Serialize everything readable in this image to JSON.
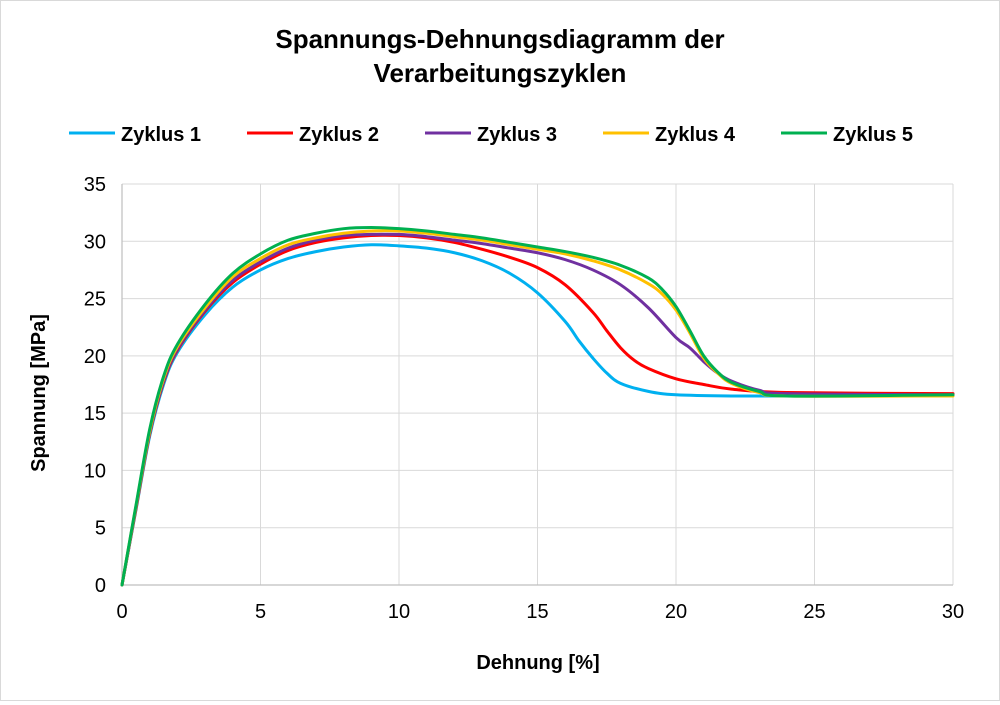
{
  "chart_data": {
    "type": "line",
    "title": "Spannungs-Dehnungsdiagramm der Verarbeitungszyklen",
    "title_lines": [
      "Spannungs-Dehnungsdiagramm der",
      "Verarbeitungszyklen"
    ],
    "xlabel": "Dehnung [%]",
    "ylabel": "Spannung [MPa]",
    "xlim": [
      0,
      30
    ],
    "ylim": [
      0,
      35
    ],
    "xticks": [
      0,
      5,
      10,
      15,
      20,
      25,
      30
    ],
    "yticks": [
      0,
      5,
      10,
      15,
      20,
      25,
      30,
      35
    ],
    "grid": true,
    "legend_position": "top",
    "series": [
      {
        "name": "Zyklus 1",
        "color": "#00b0f0",
        "points": [
          [
            0,
            0
          ],
          [
            0.5,
            6.5
          ],
          [
            1,
            13
          ],
          [
            1.5,
            17.5
          ],
          [
            2,
            20.3
          ],
          [
            3,
            23.6
          ],
          [
            4,
            26
          ],
          [
            5,
            27.5
          ],
          [
            6,
            28.5
          ],
          [
            7,
            29.1
          ],
          [
            8,
            29.5
          ],
          [
            9,
            29.7
          ],
          [
            10,
            29.6
          ],
          [
            11,
            29.4
          ],
          [
            12,
            29
          ],
          [
            13,
            28.3
          ],
          [
            14,
            27.2
          ],
          [
            15,
            25.5
          ],
          [
            16,
            23
          ],
          [
            16.5,
            21.3
          ],
          [
            17,
            19.8
          ],
          [
            17.5,
            18.5
          ],
          [
            18,
            17.6
          ],
          [
            19,
            16.9
          ],
          [
            20,
            16.6
          ],
          [
            22,
            16.5
          ],
          [
            25,
            16.5
          ],
          [
            30,
            16.6
          ]
        ]
      },
      {
        "name": "Zyklus 2",
        "color": "#ff0000",
        "points": [
          [
            0,
            0
          ],
          [
            0.5,
            6.6
          ],
          [
            1,
            13.2
          ],
          [
            1.5,
            17.7
          ],
          [
            2,
            20.5
          ],
          [
            3,
            23.9
          ],
          [
            4,
            26.4
          ],
          [
            5,
            28
          ],
          [
            6,
            29.2
          ],
          [
            7,
            29.9
          ],
          [
            8,
            30.3
          ],
          [
            9,
            30.5
          ],
          [
            10,
            30.5
          ],
          [
            11,
            30.3
          ],
          [
            12,
            29.9
          ],
          [
            13,
            29.3
          ],
          [
            14,
            28.6
          ],
          [
            15,
            27.7
          ],
          [
            16,
            26.2
          ],
          [
            17,
            23.8
          ],
          [
            17.5,
            22.2
          ],
          [
            18,
            20.7
          ],
          [
            18.5,
            19.6
          ],
          [
            19,
            18.9
          ],
          [
            20,
            18
          ],
          [
            21,
            17.5
          ],
          [
            22,
            17.1
          ],
          [
            24,
            16.8
          ],
          [
            30,
            16.7
          ]
        ]
      },
      {
        "name": "Zyklus 3",
        "color": "#7030a0",
        "points": [
          [
            0,
            0
          ],
          [
            0.5,
            6.7
          ],
          [
            1,
            13.3
          ],
          [
            1.5,
            17.8
          ],
          [
            2,
            20.6
          ],
          [
            3,
            24
          ],
          [
            4,
            26.6
          ],
          [
            5,
            28.2
          ],
          [
            6,
            29.4
          ],
          [
            7,
            30.1
          ],
          [
            8,
            30.5
          ],
          [
            9,
            30.6
          ],
          [
            10,
            30.6
          ],
          [
            11,
            30.4
          ],
          [
            12,
            30.1
          ],
          [
            13,
            29.8
          ],
          [
            14,
            29.4
          ],
          [
            15,
            29
          ],
          [
            16,
            28.4
          ],
          [
            17,
            27.5
          ],
          [
            18,
            26.2
          ],
          [
            19,
            24.2
          ],
          [
            20,
            21.6
          ],
          [
            20.5,
            20.7
          ],
          [
            21,
            19.5
          ],
          [
            21.5,
            18.5
          ],
          [
            22,
            17.8
          ],
          [
            23,
            17
          ],
          [
            24,
            16.7
          ],
          [
            30,
            16.6
          ]
        ]
      },
      {
        "name": "Zyklus 4",
        "color": "#ffc000",
        "points": [
          [
            0,
            0
          ],
          [
            0.5,
            6.8
          ],
          [
            1,
            13.4
          ],
          [
            1.5,
            18
          ],
          [
            2,
            20.8
          ],
          [
            3,
            24.2
          ],
          [
            4,
            26.9
          ],
          [
            5,
            28.5
          ],
          [
            6,
            29.7
          ],
          [
            7,
            30.3
          ],
          [
            8,
            30.7
          ],
          [
            9,
            30.9
          ],
          [
            10,
            30.9
          ],
          [
            11,
            30.7
          ],
          [
            12,
            30.4
          ],
          [
            13,
            30.1
          ],
          [
            14,
            29.7
          ],
          [
            15,
            29.3
          ],
          [
            16,
            28.9
          ],
          [
            17,
            28.3
          ],
          [
            18,
            27.5
          ],
          [
            19,
            26.3
          ],
          [
            19.5,
            25.4
          ],
          [
            20,
            24
          ],
          [
            20.5,
            22
          ],
          [
            21,
            19.8
          ],
          [
            21.5,
            18.5
          ],
          [
            22,
            17.6
          ],
          [
            23,
            16.8
          ],
          [
            24,
            16.5
          ],
          [
            30,
            16.5
          ]
        ]
      },
      {
        "name": "Zyklus 5",
        "color": "#00b050",
        "points": [
          [
            0,
            0
          ],
          [
            0.5,
            6.9
          ],
          [
            1,
            13.6
          ],
          [
            1.5,
            18.2
          ],
          [
            2,
            21
          ],
          [
            3,
            24.5
          ],
          [
            4,
            27.2
          ],
          [
            5,
            28.9
          ],
          [
            6,
            30.1
          ],
          [
            7,
            30.7
          ],
          [
            8,
            31.1
          ],
          [
            9,
            31.2
          ],
          [
            10,
            31.1
          ],
          [
            11,
            30.9
          ],
          [
            12,
            30.6
          ],
          [
            13,
            30.3
          ],
          [
            14,
            29.9
          ],
          [
            15,
            29.5
          ],
          [
            16,
            29.1
          ],
          [
            17,
            28.6
          ],
          [
            18,
            27.9
          ],
          [
            19,
            26.8
          ],
          [
            19.5,
            25.8
          ],
          [
            20,
            24.3
          ],
          [
            20.5,
            22.2
          ],
          [
            21,
            20
          ],
          [
            21.5,
            18.6
          ],
          [
            22,
            17.7
          ],
          [
            23,
            16.9
          ],
          [
            24,
            16.5
          ],
          [
            30,
            16.6
          ]
        ]
      }
    ]
  }
}
